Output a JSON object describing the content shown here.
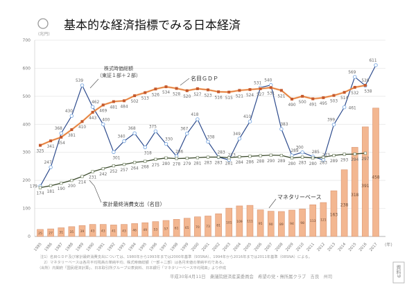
{
  "chart_data": {
    "type": "bar+line",
    "title": "基本的な経済指標でみる日本経済",
    "title_marker": "○",
    "ylabel": "(兆円)",
    "xlabel": "(年)",
    "ylim": [
      0,
      700
    ],
    "yticks": [
      0,
      100,
      200,
      300,
      400,
      500,
      600,
      700
    ],
    "grid": true,
    "categories": [
      "1985",
      "1986",
      "1987",
      "1988",
      "1989",
      "1990",
      "1991",
      "1992",
      "1993",
      "1994",
      "1995",
      "1996",
      "1997",
      "1998",
      "1999",
      "2000",
      "2001",
      "2002",
      "2003",
      "2004",
      "2005",
      "2006",
      "2007",
      "2008",
      "2009",
      "2010",
      "2011",
      "2012",
      "2013",
      "2014",
      "2015",
      "2016",
      "2017"
    ],
    "series": [
      {
        "name": "マネタリーベース",
        "type": "bar",
        "color": "#f3b791",
        "values": [
          25,
          27,
          31,
          35,
          39,
          43,
          43,
          41,
          43,
          46,
          49,
          53,
          57,
          61,
          65,
          70,
          73,
          81,
          101,
          109,
          111,
          95,
          90,
          89,
          94,
          98,
          113,
          121,
          163,
          238,
          318,
          391,
          458
        ]
      },
      {
        "name": "株式時価総額（東証１部＋２部）",
        "type": "line",
        "color": "#2c4a8c",
        "values": [
          179,
          247,
          368,
          430,
          539,
          462,
          400,
          301,
          340,
          368,
          318,
          375,
          330,
          286,
          367,
          418,
          338,
          283,
          273,
          349,
          410,
          531,
          540,
          383,
          289,
          300,
          285,
          273,
          399,
          461,
          569,
          538,
          611
        ]
      },
      {
        "name": "名目ＧＤＰ",
        "type": "line",
        "color": "#e0702e",
        "values": [
          325,
          341,
          354,
          381,
          410,
          443,
          469,
          481,
          484,
          502,
          513,
          526,
          534,
          528,
          520,
          527,
          523,
          516,
          515,
          521,
          524,
          527,
          531,
          521,
          490,
          500,
          491,
          495,
          503,
          514,
          532,
          539,
          null
        ]
      },
      {
        "name": "家計最終消費支出（名目）",
        "type": "line",
        "color": "#3b4a2c",
        "values": [
          174,
          181,
          190,
          200,
          214,
          231,
          242,
          252,
          257,
          264,
          268,
          275,
          280,
          278,
          279,
          281,
          283,
          283,
          281,
          284,
          286,
          288,
          290,
          289,
          280,
          283,
          280,
          283,
          289,
          293,
          294,
          297,
          null
        ]
      }
    ],
    "annotations": {
      "stock_line1": "株式時価総額",
      "stock_line2": "（東証１部＋２部）",
      "gdp": "名目ＧＤＰ",
      "consumption": "家計最終消費支出（名目）",
      "monetary_base": "マネタリーベース"
    }
  },
  "footnotes": [
    "注1）名目ＧＤＰ及び家計最終消費支出については、1980年から1993年までは2000年基準（93SNA）、1994年から2016年までは2011年基準（08SNA）による。",
    "　2）マネタリーベースは各月平均残高の単純平均、株式時価総額（一部＋二部）は各月末値の単純平均である。",
    "（出所）内閣府「国民経済計算」、日本取引所グループ公表資料、日本銀行「マネタリーベース平均残高」より作成"
  ],
  "footer": "平成30年4月11日　衆議院経済産業委員会　希望の党・無所属クラブ　吉良　州司",
  "stamp": "資料9"
}
